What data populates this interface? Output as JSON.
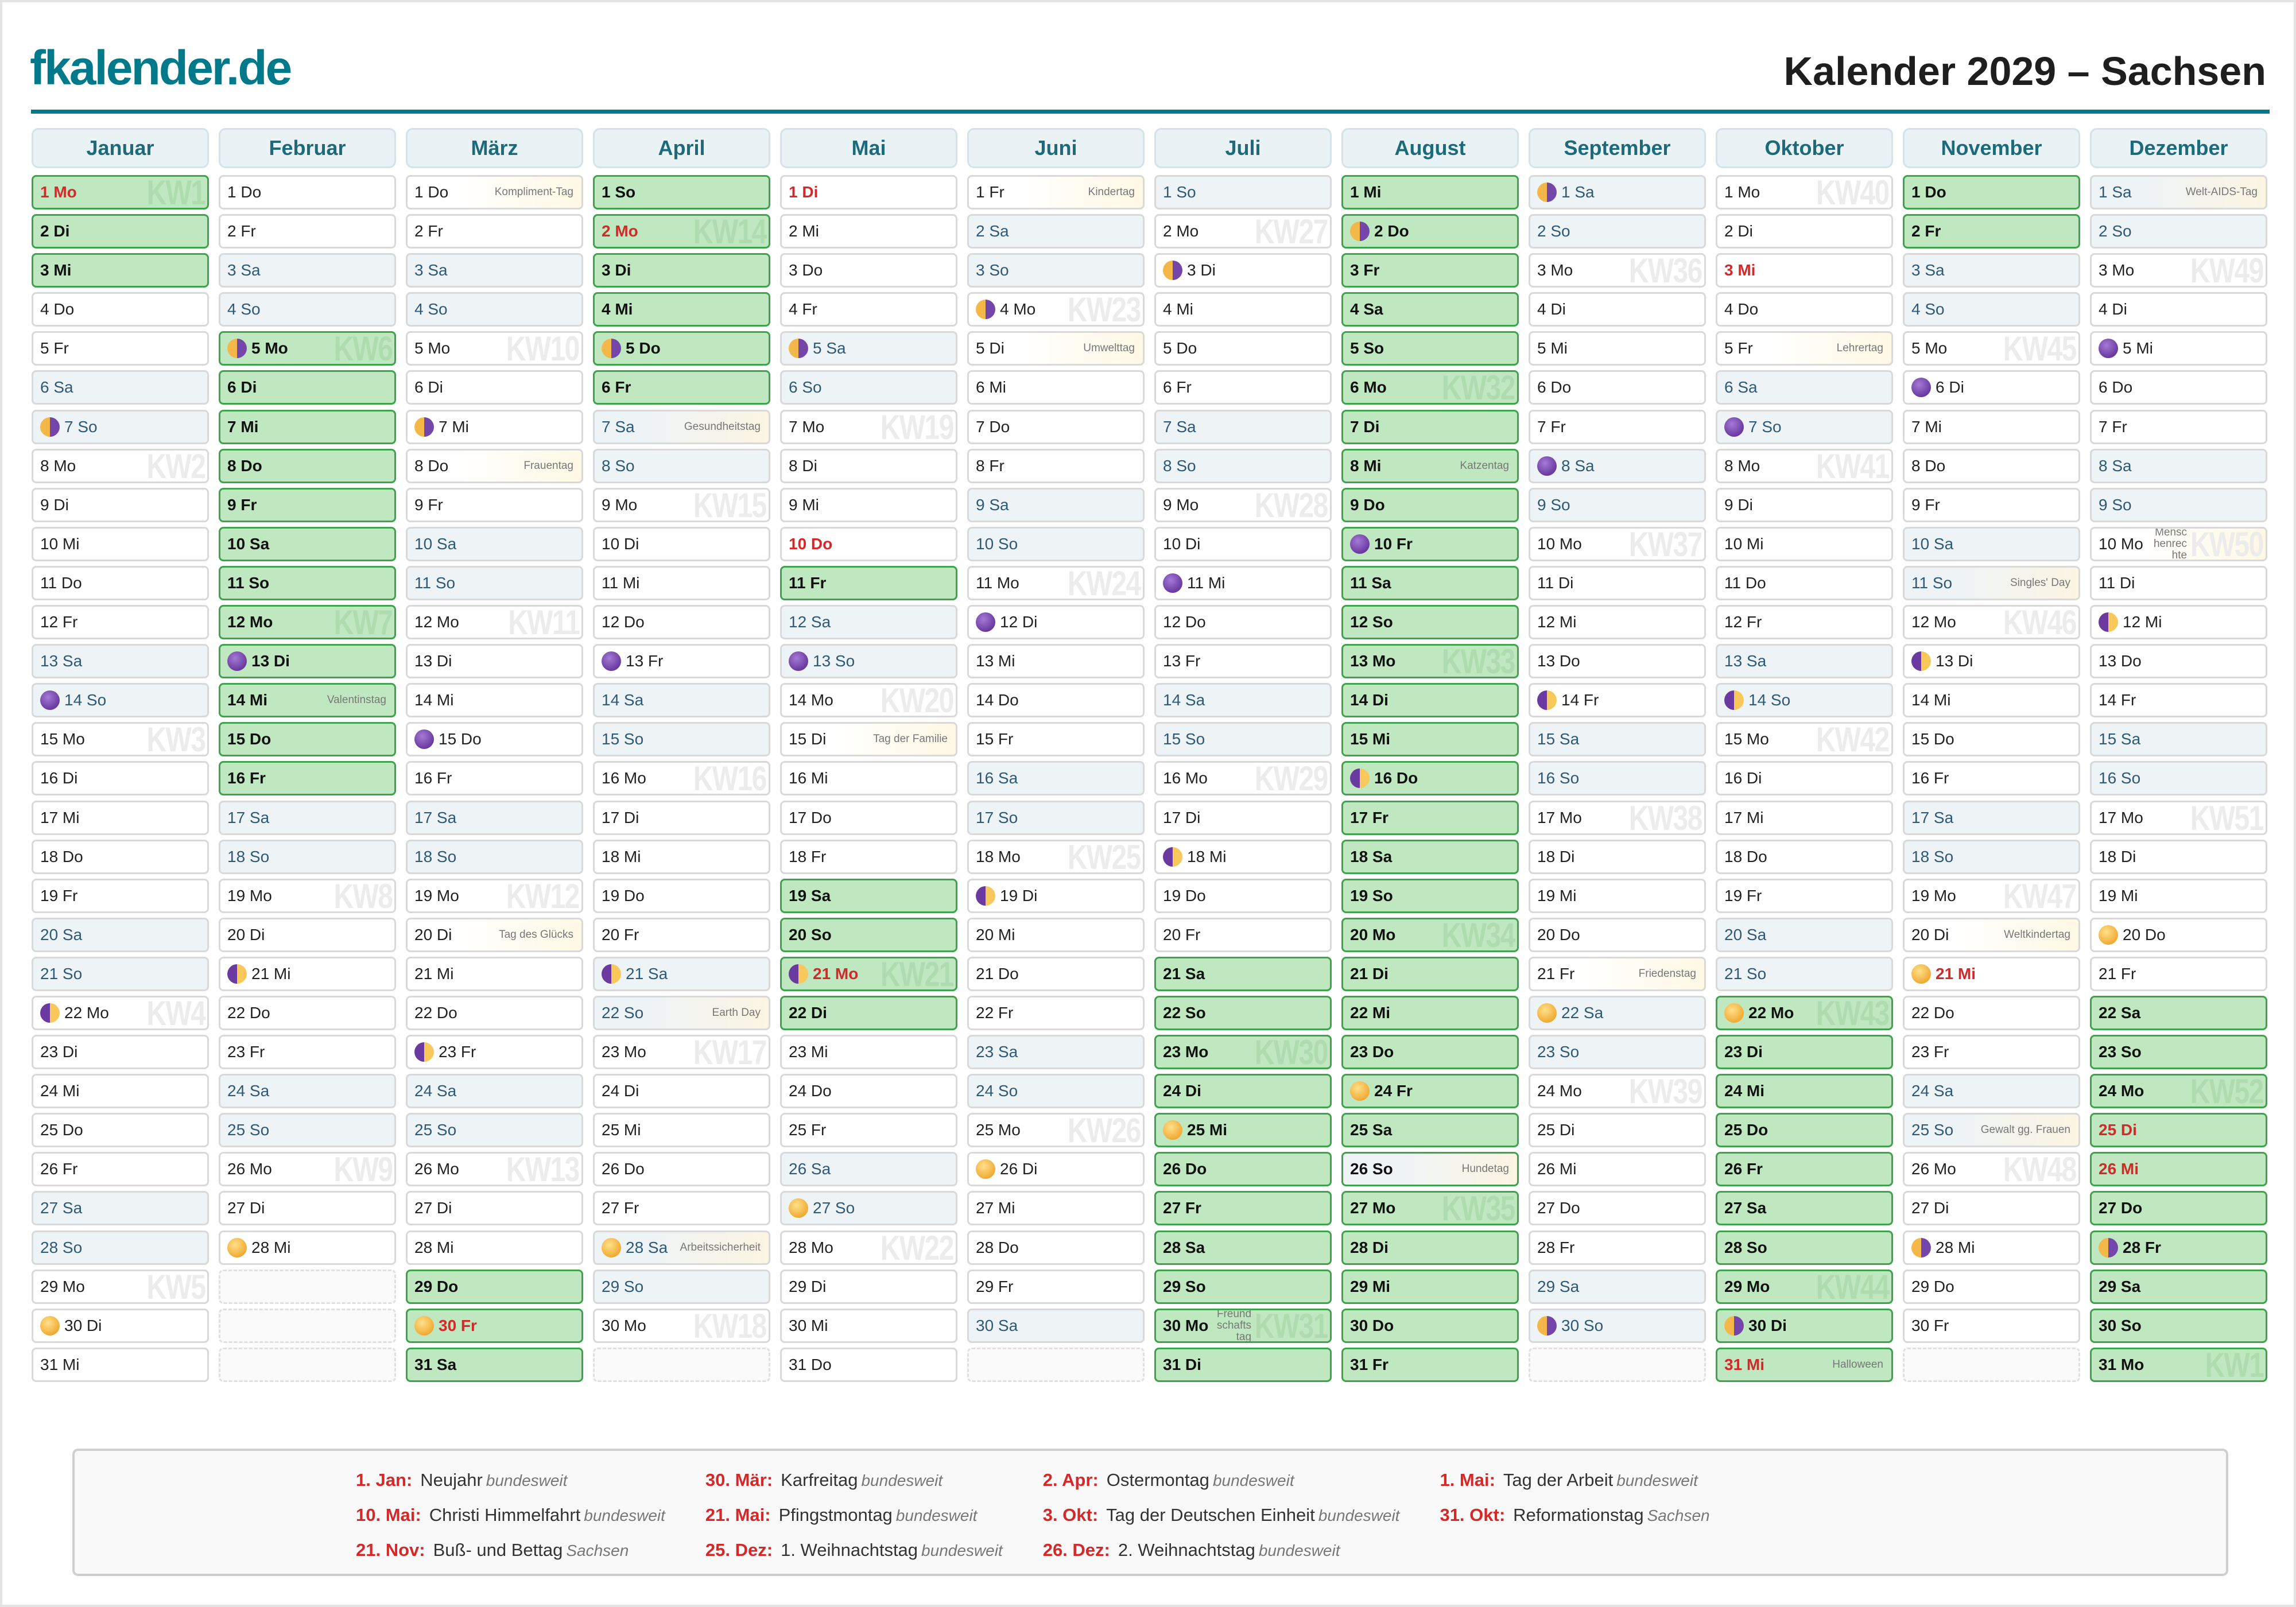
{
  "header": {
    "logo": "fkalender.de",
    "title": "Kalender 2029 – Sachsen"
  },
  "colors": {
    "brand": "#007a8a",
    "holiday": "#d62828",
    "vacation": "#c0e8c0",
    "weekend": "#eef3f6"
  },
  "months": [
    {
      "name": "Januar",
      "days": [
        "1 Mo",
        "2 Di",
        "3 Mi",
        "4 Do",
        "5 Fr",
        "6 Sa",
        "7 So",
        "8 Mo",
        "9 Di",
        "10 Mi",
        "11 Do",
        "12 Fr",
        "13 Sa",
        "14 So",
        "15 Mo",
        "16 Di",
        "17 Mi",
        "18 Do",
        "19 Fr",
        "20 Sa",
        "21 So",
        "22 Mo",
        "23 Di",
        "24 Mi",
        "25 Do",
        "26 Fr",
        "27 Sa",
        "28 So",
        "29 Mo",
        "30 Di",
        "31 Mi"
      ],
      "vacation": [
        1,
        2,
        3
      ],
      "holidays": [
        1
      ],
      "moon": {
        "7": "lq",
        "14": "new",
        "22": "fq",
        "30": "full"
      },
      "kw": {
        "1": "KW1",
        "8": "KW2",
        "15": "KW3",
        "22": "KW4",
        "29": "KW5"
      },
      "notes": {}
    },
    {
      "name": "Februar",
      "days": [
        "1 Do",
        "2 Fr",
        "3 Sa",
        "4 So",
        "5 Mo",
        "6 Di",
        "7 Mi",
        "8 Do",
        "9 Fr",
        "10 Sa",
        "11 So",
        "12 Mo",
        "13 Di",
        "14 Mi",
        "15 Do",
        "16 Fr",
        "17 Sa",
        "18 So",
        "19 Mo",
        "20 Di",
        "21 Mi",
        "22 Do",
        "23 Fr",
        "24 Sa",
        "25 So",
        "26 Mo",
        "27 Di",
        "28 Mi"
      ],
      "vacation": [
        5,
        6,
        7,
        8,
        9,
        10,
        11,
        12,
        13,
        14,
        15,
        16
      ],
      "holidays": [],
      "moon": {
        "5": "lq",
        "13": "new",
        "21": "fq",
        "28": "full"
      },
      "kw": {
        "5": "KW6",
        "12": "KW7",
        "19": "KW8",
        "26": "KW9"
      },
      "notes": {
        "14": "Valentinstag"
      }
    },
    {
      "name": "März",
      "days": [
        "1 Do",
        "2 Fr",
        "3 Sa",
        "4 So",
        "5 Mo",
        "6 Di",
        "7 Mi",
        "8 Do",
        "9 Fr",
        "10 Sa",
        "11 So",
        "12 Mo",
        "13 Di",
        "14 Mi",
        "15 Do",
        "16 Fr",
        "17 Sa",
        "18 So",
        "19 Mo",
        "20 Di",
        "21 Mi",
        "22 Do",
        "23 Fr",
        "24 Sa",
        "25 So",
        "26 Mo",
        "27 Di",
        "28 Mi",
        "29 Do",
        "30 Fr",
        "31 Sa"
      ],
      "vacation": [
        29,
        30,
        31
      ],
      "holidays": [
        30
      ],
      "moon": {
        "7": "lq",
        "15": "new",
        "23": "fq",
        "30": "full"
      },
      "kw": {
        "5": "KW10",
        "12": "KW11",
        "19": "KW12",
        "26": "KW13"
      },
      "notes": {
        "1": "Kompliment-Tag",
        "8": "Frauentag",
        "20": "Tag des Glücks"
      }
    },
    {
      "name": "April",
      "days": [
        "1 So",
        "2 Mo",
        "3 Di",
        "4 Mi",
        "5 Do",
        "6 Fr",
        "7 Sa",
        "8 So",
        "9 Mo",
        "10 Di",
        "11 Mi",
        "12 Do",
        "13 Fr",
        "14 Sa",
        "15 So",
        "16 Mo",
        "17 Di",
        "18 Mi",
        "19 Do",
        "20 Fr",
        "21 Sa",
        "22 So",
        "23 Mo",
        "24 Di",
        "25 Mi",
        "26 Do",
        "27 Fr",
        "28 Sa",
        "29 So",
        "30 Mo"
      ],
      "vacation": [
        1,
        2,
        3,
        4,
        5,
        6
      ],
      "holidays": [
        2
      ],
      "moon": {
        "5": "lq",
        "13": "new",
        "21": "fq",
        "28": "full"
      },
      "kw": {
        "2": "KW14",
        "9": "KW15",
        "16": "KW16",
        "23": "KW17",
        "30": "KW18"
      },
      "notes": {
        "7": "Gesundheitstag",
        "22": "Earth Day",
        "28": "Arbeitssicherheit"
      }
    },
    {
      "name": "Mai",
      "days": [
        "1 Di",
        "2 Mi",
        "3 Do",
        "4 Fr",
        "5 Sa",
        "6 So",
        "7 Mo",
        "8 Di",
        "9 Mi",
        "10 Do",
        "11 Fr",
        "12 Sa",
        "13 So",
        "14 Mo",
        "15 Di",
        "16 Mi",
        "17 Do",
        "18 Fr",
        "19 Sa",
        "20 So",
        "21 Mo",
        "22 Di",
        "23 Mi",
        "24 Do",
        "25 Fr",
        "26 Sa",
        "27 So",
        "28 Mo",
        "29 Di",
        "30 Mi",
        "31 Do"
      ],
      "vacation": [
        11,
        19,
        20,
        21,
        22
      ],
      "holidays": [
        1,
        10,
        21
      ],
      "moon": {
        "5": "lq",
        "13": "new",
        "21": "fq",
        "27": "full"
      },
      "kw": {
        "7": "KW19",
        "14": "KW20",
        "21": "KW21",
        "28": "KW22"
      },
      "notes": {
        "15": "Tag der Familie"
      }
    },
    {
      "name": "Juni",
      "days": [
        "1 Fr",
        "2 Sa",
        "3 So",
        "4 Mo",
        "5 Di",
        "6 Mi",
        "7 Do",
        "8 Fr",
        "9 Sa",
        "10 So",
        "11 Mo",
        "12 Di",
        "13 Mi",
        "14 Do",
        "15 Fr",
        "16 Sa",
        "17 So",
        "18 Mo",
        "19 Di",
        "20 Mi",
        "21 Do",
        "22 Fr",
        "23 Sa",
        "24 So",
        "25 Mo",
        "26 Di",
        "27 Mi",
        "28 Do",
        "29 Fr",
        "30 Sa"
      ],
      "vacation": [],
      "holidays": [],
      "moon": {
        "4": "lq",
        "12": "new",
        "19": "fq",
        "26": "full"
      },
      "kw": {
        "4": "KW23",
        "11": "KW24",
        "18": "KW25",
        "25": "KW26"
      },
      "notes": {
        "1": "Kindertag",
        "5": "Umwelttag"
      }
    },
    {
      "name": "Juli",
      "days": [
        "1 So",
        "2 Mo",
        "3 Di",
        "4 Mi",
        "5 Do",
        "6 Fr",
        "7 Sa",
        "8 So",
        "9 Mo",
        "10 Di",
        "11 Mi",
        "12 Do",
        "13 Fr",
        "14 Sa",
        "15 So",
        "16 Mo",
        "17 Di",
        "18 Mi",
        "19 Do",
        "20 Fr",
        "21 Sa",
        "22 So",
        "23 Mo",
        "24 Di",
        "25 Mi",
        "26 Do",
        "27 Fr",
        "28 Sa",
        "29 So",
        "30 Mo",
        "31 Di"
      ],
      "vacation": [
        21,
        22,
        23,
        24,
        25,
        26,
        27,
        28,
        29,
        30,
        31
      ],
      "holidays": [],
      "moon": {
        "3": "lq",
        "11": "new",
        "18": "fq",
        "25": "full"
      },
      "kw": {
        "2": "KW27",
        "9": "KW28",
        "16": "KW29",
        "23": "KW30",
        "30": "KW31"
      },
      "notes": {
        "30": "Freundschaftstag"
      }
    },
    {
      "name": "August",
      "days": [
        "1 Mi",
        "2 Do",
        "3 Fr",
        "4 Sa",
        "5 So",
        "6 Mo",
        "7 Di",
        "8 Mi",
        "9 Do",
        "10 Fr",
        "11 Sa",
        "12 So",
        "13 Mo",
        "14 Di",
        "15 Mi",
        "16 Do",
        "17 Fr",
        "18 Sa",
        "19 So",
        "20 Mo",
        "21 Di",
        "22 Mi",
        "23 Do",
        "24 Fr",
        "25 Sa",
        "26 So",
        "27 Mo",
        "28 Di",
        "29 Mi",
        "30 Do",
        "31 Fr"
      ],
      "vacation": [
        1,
        2,
        3,
        4,
        5,
        6,
        7,
        8,
        9,
        10,
        11,
        12,
        13,
        14,
        15,
        16,
        17,
        18,
        19,
        20,
        21,
        22,
        23,
        24,
        25,
        26,
        27,
        28,
        29,
        30,
        31
      ],
      "holidays": [],
      "moon": {
        "2": "lq",
        "10": "new",
        "16": "fq",
        "24": "full"
      },
      "kw": {
        "6": "KW32",
        "13": "KW33",
        "20": "KW34",
        "27": "KW35"
      },
      "notes": {
        "8": "Katzentag",
        "26": "Hundetag"
      }
    },
    {
      "name": "September",
      "days": [
        "1 Sa",
        "2 So",
        "3 Mo",
        "4 Di",
        "5 Mi",
        "6 Do",
        "7 Fr",
        "8 Sa",
        "9 So",
        "10 Mo",
        "11 Di",
        "12 Mi",
        "13 Do",
        "14 Fr",
        "15 Sa",
        "16 So",
        "17 Mo",
        "18 Di",
        "19 Mi",
        "20 Do",
        "21 Fr",
        "22 Sa",
        "23 So",
        "24 Mo",
        "25 Di",
        "26 Mi",
        "27 Do",
        "28 Fr",
        "29 Sa",
        "30 So"
      ],
      "vacation": [],
      "holidays": [],
      "moon": {
        "1": "lq",
        "8": "new",
        "14": "fq",
        "22": "full",
        "30": "lq"
      },
      "kw": {
        "3": "KW36",
        "10": "KW37",
        "17": "KW38",
        "24": "KW39"
      },
      "notes": {
        "21": "Friedenstag"
      }
    },
    {
      "name": "Oktober",
      "days": [
        "1 Mo",
        "2 Di",
        "3 Mi",
        "4 Do",
        "5 Fr",
        "6 Sa",
        "7 So",
        "8 Mo",
        "9 Di",
        "10 Mi",
        "11 Do",
        "12 Fr",
        "13 Sa",
        "14 So",
        "15 Mo",
        "16 Di",
        "17 Mi",
        "18 Do",
        "19 Fr",
        "20 Sa",
        "21 So",
        "22 Mo",
        "23 Di",
        "24 Mi",
        "25 Do",
        "26 Fr",
        "27 Sa",
        "28 So",
        "29 Mo",
        "30 Di",
        "31 Mi"
      ],
      "vacation": [
        22,
        23,
        24,
        25,
        26,
        27,
        28,
        29,
        30,
        31
      ],
      "holidays": [
        3,
        31
      ],
      "moon": {
        "7": "new",
        "14": "fq",
        "22": "full",
        "30": "lq"
      },
      "kw": {
        "1": "KW40",
        "8": "KW41",
        "15": "KW42",
        "22": "KW43",
        "29": "KW44"
      },
      "notes": {
        "5": "Lehrertag",
        "31": "Halloween"
      }
    },
    {
      "name": "November",
      "days": [
        "1 Do",
        "2 Fr",
        "3 Sa",
        "4 So",
        "5 Mo",
        "6 Di",
        "7 Mi",
        "8 Do",
        "9 Fr",
        "10 Sa",
        "11 So",
        "12 Mo",
        "13 Di",
        "14 Mi",
        "15 Do",
        "16 Fr",
        "17 Sa",
        "18 So",
        "19 Mo",
        "20 Di",
        "21 Mi",
        "22 Do",
        "23 Fr",
        "24 Sa",
        "25 So",
        "26 Mo",
        "27 Di",
        "28 Mi",
        "29 Do",
        "30 Fr"
      ],
      "vacation": [
        1,
        2
      ],
      "holidays": [
        21
      ],
      "moon": {
        "6": "new",
        "13": "fq",
        "21": "full",
        "28": "lq"
      },
      "kw": {
        "5": "KW45",
        "12": "KW46",
        "19": "KW47",
        "26": "KW48"
      },
      "notes": {
        "11": "Singles' Day",
        "20": "Weltkindertag",
        "25": "Gewalt gg. Frauen"
      }
    },
    {
      "name": "Dezember",
      "days": [
        "1 Sa",
        "2 So",
        "3 Mo",
        "4 Di",
        "5 Mi",
        "6 Do",
        "7 Fr",
        "8 Sa",
        "9 So",
        "10 Mo",
        "11 Di",
        "12 Mi",
        "13 Do",
        "14 Fr",
        "15 Sa",
        "16 So",
        "17 Mo",
        "18 Di",
        "19 Mi",
        "20 Do",
        "21 Fr",
        "22 Sa",
        "23 So",
        "24 Mo",
        "25 Di",
        "26 Mi",
        "27 Do",
        "28 Fr",
        "29 Sa",
        "30 So",
        "31 Mo"
      ],
      "vacation": [
        22,
        23,
        24,
        25,
        26,
        27,
        28,
        29,
        30,
        31
      ],
      "holidays": [
        25,
        26
      ],
      "moon": {
        "5": "new",
        "12": "fq",
        "20": "full",
        "28": "lq"
      },
      "kw": {
        "3": "KW49",
        "10": "KW50",
        "17": "KW51",
        "24": "KW52",
        "31": "KW1"
      },
      "notes": {
        "1": "Welt-AIDS-Tag",
        "10": "Menschenrechte"
      }
    }
  ],
  "legend": [
    {
      "date": "1. Jan:",
      "name": "Neujahr",
      "scope": "bundesweit"
    },
    {
      "date": "30. Mär:",
      "name": "Karfreitag",
      "scope": "bundesweit"
    },
    {
      "date": "2. Apr:",
      "name": "Ostermontag",
      "scope": "bundesweit"
    },
    {
      "date": "1. Mai:",
      "name": "Tag der Arbeit",
      "scope": "bundesweit"
    },
    {
      "date": "10. Mai:",
      "name": "Christi Himmelfahrt",
      "scope": "bundesweit"
    },
    {
      "date": "21. Mai:",
      "name": "Pfingstmontag",
      "scope": "bundesweit"
    },
    {
      "date": "3. Okt:",
      "name": "Tag der Deutschen Einheit",
      "scope": "bundesweit"
    },
    {
      "date": "31. Okt:",
      "name": "Reformationstag",
      "scope": "Sachsen"
    },
    {
      "date": "21. Nov:",
      "name": "Buß- und Bettag",
      "scope": "Sachsen"
    },
    {
      "date": "25. Dez:",
      "name": "1. Weihnachtstag",
      "scope": "bundesweit"
    },
    {
      "date": "26. Dez:",
      "name": "2. Weihnachtstag",
      "scope": "bundesweit"
    }
  ]
}
